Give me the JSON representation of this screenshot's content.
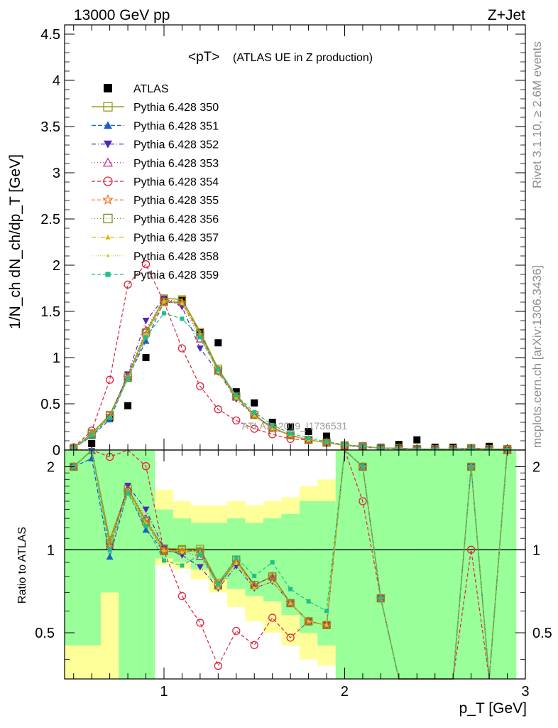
{
  "header": {
    "left": "13000 GeV pp",
    "right": "Z+Jet"
  },
  "side": {
    "rivet": "Rivet 3.1.10, ≥ 2.6M events",
    "mcplots": "mcplots.cern.ch [arXiv:1306.3436]"
  },
  "watermark": "ATLAS_2019_I1736531",
  "chart_data": [
    {
      "type": "scatter",
      "title": "<pT>",
      "subtitle": "(ATLAS UE in Z production)",
      "ylabel": "1/N_ch dN_ch/dp_T [GeV]",
      "xlim": [
        0.45,
        3.0
      ],
      "ylim": [
        0,
        4.6
      ],
      "y_ticks": [
        "0",
        "0.5",
        "1",
        "1.5",
        "2",
        "2.5",
        "3",
        "3.5",
        "4",
        "4.5"
      ],
      "x": [
        0.5,
        0.6,
        0.7,
        0.8,
        0.9,
        1.0,
        1.1,
        1.2,
        1.3,
        1.4,
        1.5,
        1.6,
        1.7,
        1.8,
        1.9,
        2.0,
        2.1,
        2.2,
        2.3,
        2.4,
        2.5,
        2.6,
        2.7,
        2.8,
        2.9
      ],
      "series": [
        {
          "name": "ATLAS",
          "marker": "square-filled",
          "color": "#000000",
          "values": [
            0.01,
            0.07,
            0.35,
            0.48,
            1.0,
            1.62,
            1.62,
            1.27,
            1.16,
            0.63,
            0.51,
            0.3,
            0.25,
            0.2,
            0.15,
            0.02,
            0.02,
            0.03,
            0.06,
            0.11,
            0.03,
            0.03,
            0.01,
            0.04,
            0.0
          ]
        },
        {
          "name": "Pythia 6.428 350",
          "marker": "square-open",
          "color": "#9c9c1e",
          "dash": "",
          "solid": true,
          "values": [
            0.02,
            0.18,
            0.38,
            0.8,
            1.27,
            1.64,
            1.63,
            1.28,
            0.88,
            0.58,
            0.38,
            0.24,
            0.16,
            0.11,
            0.08,
            0.05,
            0.04,
            0.02,
            0.02,
            0.01,
            0.01,
            0.01,
            0.02,
            0.01,
            0.01
          ]
        },
        {
          "name": "Pythia 6.428 351",
          "marker": "triangle-up-filled",
          "color": "#1f5fbf",
          "dash": "6,3",
          "values": [
            0.02,
            0.15,
            0.33,
            0.78,
            1.18,
            1.6,
            1.59,
            1.27,
            0.86,
            0.57,
            0.38,
            0.24,
            0.16,
            0.11,
            0.08,
            0.05,
            0.04,
            0.02,
            0.02,
            0.01,
            0.01,
            0.01,
            0.02,
            0.01,
            0.01
          ]
        },
        {
          "name": "Pythia 6.428 352",
          "marker": "triangle-down-filled",
          "color": "#4b2ab8",
          "dash": "6,3,1,3",
          "values": [
            0.02,
            0.16,
            0.36,
            0.82,
            1.4,
            1.64,
            1.55,
            1.1,
            0.84,
            0.55,
            0.37,
            0.23,
            0.16,
            0.11,
            0.08,
            0.05,
            0.04,
            0.02,
            0.02,
            0.01,
            0.01,
            0.01,
            0.02,
            0.01,
            0.01
          ]
        },
        {
          "name": "Pythia 6.428 353",
          "marker": "triangle-up-open",
          "color": "#b3207a",
          "dash": "1,3",
          "values": [
            0.02,
            0.16,
            0.36,
            0.8,
            1.3,
            1.63,
            1.6,
            1.2,
            0.86,
            0.57,
            0.38,
            0.24,
            0.16,
            0.11,
            0.08,
            0.05,
            0.04,
            0.02,
            0.02,
            0.01,
            0.01,
            0.01,
            0.02,
            0.01,
            0.01
          ]
        },
        {
          "name": "Pythia 6.428 354",
          "marker": "circle-open",
          "color": "#e0223c",
          "dash": "5,3",
          "values": [
            0.03,
            0.21,
            0.76,
            1.79,
            2.01,
            1.6,
            1.1,
            0.69,
            0.44,
            0.32,
            0.23,
            0.17,
            0.12,
            0.11,
            0.08,
            0.05,
            0.03,
            0.02,
            0.01,
            0.01,
            0.01,
            0.01,
            0.01,
            0.01,
            0.0
          ]
        },
        {
          "name": "Pythia 6.428 355",
          "marker": "star-open",
          "color": "#f07020",
          "dash": "5,3",
          "values": [
            0.02,
            0.17,
            0.37,
            0.78,
            1.25,
            1.6,
            1.6,
            1.25,
            0.87,
            0.57,
            0.38,
            0.24,
            0.16,
            0.11,
            0.08,
            0.05,
            0.04,
            0.02,
            0.02,
            0.01,
            0.01,
            0.01,
            0.02,
            0.01,
            0.01
          ]
        },
        {
          "name": "Pythia 6.428 356",
          "marker": "square-open",
          "color": "#7f8a1e",
          "dash": "1,3",
          "values": [
            0.02,
            0.17,
            0.37,
            0.78,
            1.27,
            1.6,
            1.62,
            1.25,
            0.86,
            0.58,
            0.38,
            0.24,
            0.16,
            0.11,
            0.08,
            0.05,
            0.04,
            0.02,
            0.02,
            0.01,
            0.01,
            0.01,
            0.02,
            0.01,
            0.01
          ]
        },
        {
          "name": "Pythia 6.428 357",
          "marker": "triangle-small",
          "color": "#d4b400",
          "dash": "6,3,1,3",
          "values": [
            0.02,
            0.17,
            0.36,
            0.78,
            1.25,
            1.62,
            1.6,
            1.25,
            0.85,
            0.57,
            0.37,
            0.23,
            0.16,
            0.11,
            0.08,
            0.05,
            0.04,
            0.02,
            0.02,
            0.01,
            0.01,
            0.01,
            0.02,
            0.01,
            0.01
          ]
        },
        {
          "name": "Pythia 6.428 358",
          "marker": "dot",
          "color": "#bfd630",
          "dash": "1,2",
          "values": [
            0.02,
            0.17,
            0.36,
            0.77,
            1.24,
            1.6,
            1.58,
            1.23,
            0.84,
            0.56,
            0.37,
            0.23,
            0.16,
            0.11,
            0.08,
            0.05,
            0.04,
            0.02,
            0.02,
            0.01,
            0.01,
            0.01,
            0.02,
            0.01,
            0.01
          ]
        },
        {
          "name": "Pythia 6.428 359",
          "marker": "square-small-filled",
          "color": "#20bf8c",
          "dash": "5,3",
          "values": [
            0.02,
            0.16,
            0.35,
            0.77,
            1.22,
            1.48,
            1.42,
            1.22,
            0.87,
            0.59,
            0.41,
            0.27,
            0.18,
            0.13,
            0.09,
            0.06,
            0.04,
            0.02,
            0.02,
            0.01,
            0.01,
            0.01,
            0.02,
            0.01,
            0.01
          ]
        }
      ]
    },
    {
      "type": "line",
      "ylabel": "Ratio to ATLAS",
      "xlabel": "p_T [GeV]",
      "xlim": [
        0.45,
        3.0
      ],
      "ylim": [
        0.34,
        2.3
      ],
      "x_ticks": [
        "1",
        "2",
        "3"
      ],
      "y_ticks": [
        "0.5",
        "1",
        "2"
      ],
      "reference_line": 1,
      "band_green": [
        [
          0.45,
          2.3
        ],
        [
          0.45,
          2.3
        ],
        [
          0.7,
          2.3
        ],
        [
          0.34,
          2.3
        ],
        [
          0.34,
          2.3
        ],
        [
          0.93,
          1.4
        ],
        [
          0.9,
          1.3
        ],
        [
          0.85,
          1.25
        ],
        [
          0.78,
          1.25
        ],
        [
          0.72,
          1.3
        ],
        [
          0.68,
          1.25
        ],
        [
          0.65,
          1.3
        ],
        [
          0.58,
          1.35
        ],
        [
          0.5,
          1.5
        ],
        [
          0.45,
          1.5
        ],
        [
          0.34,
          2.3
        ],
        [
          0.34,
          2.3
        ],
        [
          0.34,
          2.3
        ],
        [
          0.34,
          2.3
        ],
        [
          0.34,
          2.3
        ],
        [
          0.34,
          2.3
        ],
        [
          0.34,
          2.3
        ],
        [
          0.34,
          2.3
        ],
        [
          0.34,
          2.3
        ],
        [
          0.34,
          2.3
        ]
      ],
      "band_yellow": [
        [
          0.34,
          2.3
        ],
        [
          0.34,
          2.3
        ],
        [
          0.34,
          2.3
        ],
        [
          0.34,
          2.3
        ],
        [
          0.34,
          2.3
        ],
        [
          0.88,
          1.65
        ],
        [
          0.85,
          1.5
        ],
        [
          0.78,
          1.45
        ],
        [
          0.7,
          1.45
        ],
        [
          0.62,
          1.5
        ],
        [
          0.55,
          1.45
        ],
        [
          0.5,
          1.5
        ],
        [
          0.45,
          1.55
        ],
        [
          0.4,
          1.7
        ],
        [
          0.38,
          1.8
        ],
        [
          0.34,
          2.3
        ],
        [
          0.34,
          2.3
        ],
        [
          0.34,
          2.3
        ],
        [
          0.34,
          2.3
        ],
        [
          0.34,
          2.3
        ],
        [
          0.34,
          2.3
        ],
        [
          0.34,
          2.3
        ],
        [
          0.34,
          2.3
        ],
        [
          0.34,
          2.3
        ],
        [
          0.34,
          2.3
        ]
      ],
      "note": ""
    }
  ]
}
